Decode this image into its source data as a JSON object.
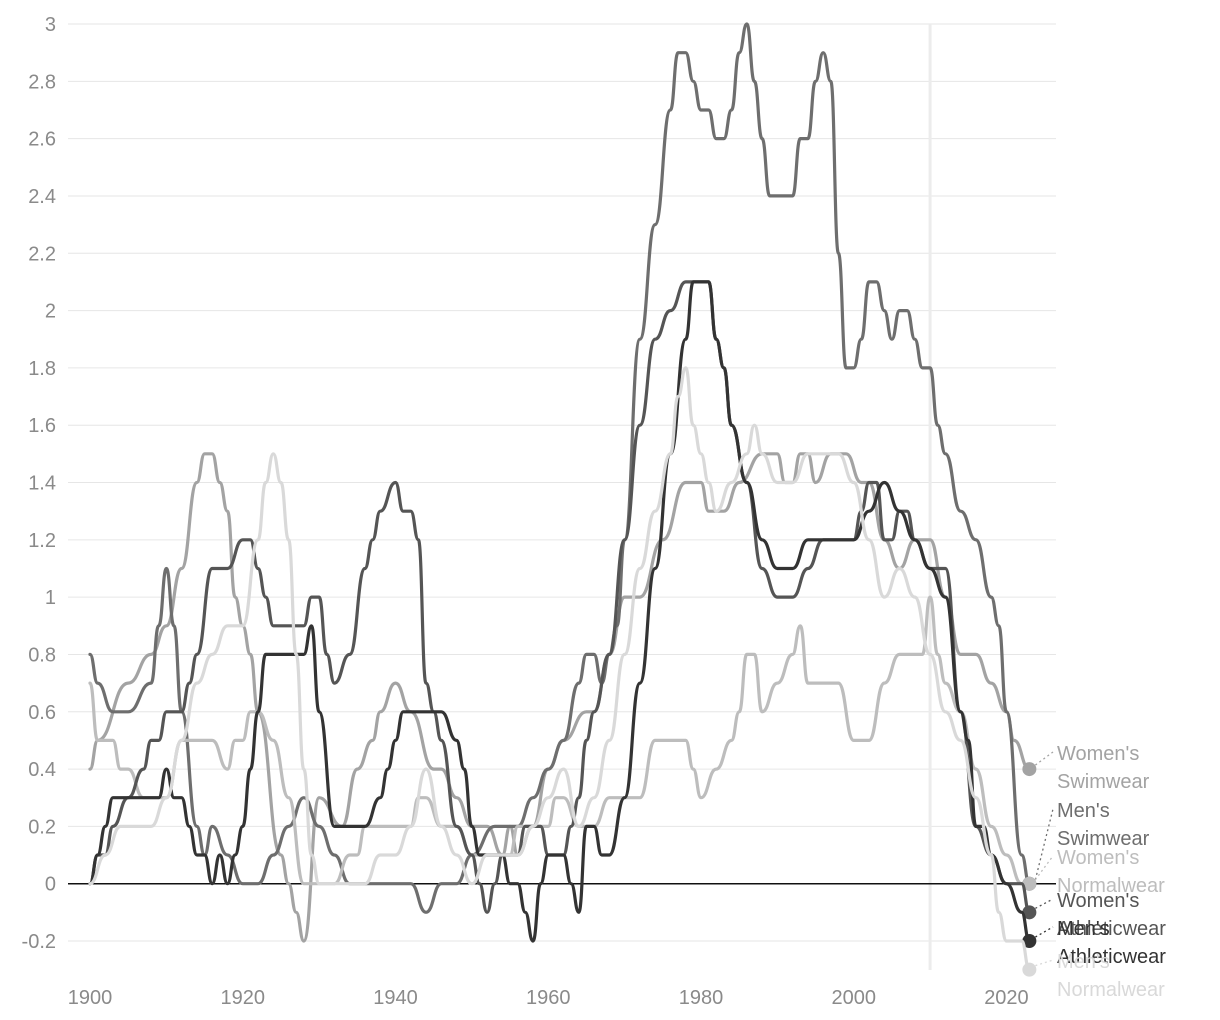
{
  "chart_data": {
    "type": "line",
    "title": "",
    "xlabel": "",
    "ylabel": "",
    "xlim": [
      1900,
      2024
    ],
    "ylim": [
      -0.3,
      3.0
    ],
    "x_ticks": [
      1900,
      1920,
      1940,
      1960,
      1980,
      2000,
      2020
    ],
    "y_ticks": [
      -0.2,
      0,
      0.2,
      0.4,
      0.6,
      0.8,
      1,
      1.2,
      1.4,
      1.6,
      1.8,
      2,
      2.2,
      2.4,
      2.6,
      2.8,
      3
    ],
    "y_tick_labels": [
      "-0.2",
      "0",
      "0.2",
      "0.4",
      "0.6",
      "0.8",
      "1",
      "1.2",
      "1.4",
      "1.6",
      "1.8",
      "2",
      "2.2",
      "2.4",
      "2.6",
      "2.8",
      "3"
    ],
    "x_tick_labels": [
      "1900",
      "1920",
      "1940",
      "1960",
      "1980",
      "2000",
      "2020"
    ],
    "grid": true,
    "vertical_marker_x": 2010,
    "legend": "end-of-line labels",
    "series": [
      {
        "name": "Women's Swimwear",
        "label_lines": [
          "Women's",
          "Swimwear"
        ],
        "color": "#a3a3a3",
        "x": [
          1900,
          1901,
          1905,
          1908,
          1910,
          1912,
          1914,
          1915,
          1916,
          1917,
          1918,
          1919,
          1920,
          1921,
          1922,
          1925,
          1926,
          1927,
          1928,
          1930,
          1933,
          1935,
          1937,
          1938,
          1940,
          1942,
          1945,
          1946,
          1948,
          1950,
          1952,
          1954,
          1955,
          1956,
          1958,
          1960,
          1962,
          1965,
          1966,
          1968,
          1970,
          1972,
          1975,
          1978,
          1979,
          1980,
          1981,
          1983,
          1985,
          1988,
          1990,
          1991,
          1992,
          1993,
          1994,
          1995,
          1997,
          1999,
          2001,
          2002,
          2004,
          2006,
          2008,
          2010,
          2012,
          2014,
          2016,
          2018,
          2020,
          2021,
          2023
        ],
        "y": [
          0.4,
          0.5,
          0.7,
          0.8,
          0.9,
          1.1,
          1.4,
          1.5,
          1.5,
          1.4,
          1.3,
          1.0,
          0.9,
          0.8,
          0.6,
          0.1,
          0.0,
          -0.1,
          -0.2,
          0.3,
          0.2,
          0.4,
          0.5,
          0.6,
          0.7,
          0.6,
          0.4,
          0.4,
          0.3,
          0.2,
          0.2,
          0.1,
          0.2,
          0.1,
          0.2,
          0.4,
          0.5,
          0.6,
          0.6,
          0.8,
          1.0,
          1.0,
          1.2,
          1.4,
          1.4,
          1.4,
          1.3,
          1.3,
          1.4,
          1.5,
          1.5,
          1.4,
          1.4,
          1.5,
          1.5,
          1.4,
          1.5,
          1.5,
          1.4,
          1.4,
          1.2,
          1.1,
          1.2,
          1.2,
          1.0,
          0.8,
          0.8,
          0.7,
          0.6,
          0.5,
          0.4
        ]
      },
      {
        "name": "Men's Swimwear",
        "label_lines": [
          "Men's",
          "Swimwear"
        ],
        "color": "#6e6e6e",
        "x": [
          1900,
          1901,
          1903,
          1905,
          1908,
          1909,
          1910,
          1911,
          1912,
          1914,
          1915,
          1916,
          1918,
          1920,
          1922,
          1924,
          1926,
          1928,
          1930,
          1932,
          1934,
          1936,
          1938,
          1940,
          1942,
          1944,
          1946,
          1948,
          1950,
          1953,
          1956,
          1958,
          1960,
          1962,
          1964,
          1965,
          1966,
          1967,
          1968,
          1969,
          1970,
          1972,
          1974,
          1976,
          1977,
          1978,
          1979,
          1980,
          1981,
          1982,
          1983,
          1984,
          1985,
          1986,
          1987,
          1988,
          1989,
          1990,
          1992,
          1993,
          1994,
          1995,
          1996,
          1997,
          1998,
          1999,
          2000,
          2001,
          2002,
          2003,
          2004,
          2005,
          2006,
          2007,
          2008,
          2009,
          2010,
          2011,
          2012,
          2014,
          2016,
          2018,
          2019,
          2020,
          2022,
          2023
        ],
        "y": [
          0.8,
          0.7,
          0.6,
          0.6,
          0.7,
          0.9,
          1.1,
          0.9,
          0.6,
          0.2,
          0.1,
          0.2,
          0.1,
          0.0,
          0.0,
          0.1,
          0.2,
          0.3,
          0.2,
          0.1,
          0.0,
          0.0,
          0.0,
          0.0,
          0.0,
          -0.1,
          0.0,
          0.0,
          0.1,
          0.2,
          0.2,
          0.3,
          0.4,
          0.5,
          0.7,
          0.8,
          0.8,
          0.7,
          0.8,
          0.9,
          1.2,
          1.9,
          2.3,
          2.7,
          2.9,
          2.9,
          2.8,
          2.7,
          2.7,
          2.6,
          2.6,
          2.7,
          2.9,
          3.0,
          2.8,
          2.6,
          2.4,
          2.4,
          2.4,
          2.6,
          2.6,
          2.8,
          2.9,
          2.8,
          2.2,
          1.8,
          1.8,
          1.9,
          2.1,
          2.1,
          2.0,
          1.9,
          2.0,
          2.0,
          1.9,
          1.8,
          1.8,
          1.6,
          1.5,
          1.3,
          1.2,
          1.0,
          0.9,
          0.6,
          0.1,
          0.0
        ]
      },
      {
        "name": "Women's Normalwear",
        "label_lines": [
          "Women's",
          "Normalwear"
        ],
        "color": "#bdbdbd",
        "x": [
          1900,
          1901,
          1903,
          1904,
          1905,
          1907,
          1910,
          1912,
          1914,
          1916,
          1918,
          1919,
          1920,
          1921,
          1922,
          1924,
          1926,
          1928,
          1930,
          1932,
          1934,
          1935,
          1936,
          1938,
          1940,
          1942,
          1943,
          1944,
          1946,
          1948,
          1950,
          1952,
          1954,
          1955,
          1956,
          1958,
          1960,
          1961,
          1962,
          1964,
          1966,
          1968,
          1970,
          1972,
          1974,
          1976,
          1978,
          1979,
          1980,
          1982,
          1984,
          1985,
          1986,
          1987,
          1988,
          1990,
          1992,
          1993,
          1994,
          1996,
          1998,
          2000,
          2002,
          2004,
          2006,
          2008,
          2009,
          2010,
          2011,
          2012,
          2014,
          2016,
          2018,
          2020,
          2022,
          2023
        ],
        "y": [
          0.7,
          0.5,
          0.5,
          0.4,
          0.4,
          0.3,
          0.3,
          0.5,
          0.5,
          0.5,
          0.4,
          0.5,
          0.5,
          0.6,
          0.6,
          0.5,
          0.3,
          0.0,
          0.0,
          0.0,
          0.1,
          0.1,
          0.2,
          0.2,
          0.2,
          0.2,
          0.3,
          0.3,
          0.2,
          0.2,
          0.1,
          0.1,
          0.1,
          0.1,
          0.2,
          0.2,
          0.2,
          0.3,
          0.3,
          0.2,
          0.2,
          0.3,
          0.3,
          0.3,
          0.5,
          0.5,
          0.5,
          0.4,
          0.3,
          0.4,
          0.5,
          0.6,
          0.8,
          0.8,
          0.6,
          0.7,
          0.8,
          0.9,
          0.7,
          0.7,
          0.7,
          0.5,
          0.5,
          0.7,
          0.8,
          0.8,
          0.8,
          1.0,
          0.8,
          0.7,
          0.6,
          0.4,
          0.2,
          0.1,
          0.0,
          0.0
        ]
      },
      {
        "name": "Women's Athleticwear",
        "label_lines": [
          "Women's",
          "Athleticwear"
        ],
        "color": "#555555",
        "x": [
          1900,
          1901,
          1902,
          1903,
          1905,
          1907,
          1908,
          1909,
          1910,
          1911,
          1912,
          1913,
          1914,
          1916,
          1918,
          1920,
          1921,
          1922,
          1923,
          1924,
          1925,
          1926,
          1928,
          1929,
          1930,
          1931,
          1932,
          1934,
          1936,
          1937,
          1938,
          1940,
          1941,
          1942,
          1943,
          1944,
          1945,
          1946,
          1948,
          1950,
          1951,
          1952,
          1953,
          1954,
          1955,
          1956,
          1957,
          1958,
          1959,
          1960,
          1961,
          1962,
          1963,
          1964,
          1965,
          1966,
          1968,
          1970,
          1972,
          1974,
          1976,
          1978,
          1979,
          1980,
          1981,
          1982,
          1983,
          1984,
          1986,
          1988,
          1990,
          1992,
          1994,
          1996,
          1998,
          2000,
          2001,
          2002,
          2003,
          2004,
          2005,
          2006,
          2007,
          2008,
          2010,
          2012,
          2014,
          2016,
          2018,
          2020,
          2022,
          2023
        ],
        "y": [
          0.0,
          0.1,
          0.1,
          0.2,
          0.3,
          0.4,
          0.5,
          0.5,
          0.6,
          0.6,
          0.6,
          0.7,
          0.8,
          1.1,
          1.1,
          1.2,
          1.2,
          1.1,
          1.0,
          0.9,
          0.9,
          0.9,
          0.9,
          1.0,
          1.0,
          0.8,
          0.7,
          0.8,
          1.1,
          1.2,
          1.3,
          1.4,
          1.3,
          1.3,
          1.2,
          0.7,
          0.6,
          0.5,
          0.2,
          0.1,
          0.0,
          -0.1,
          0.0,
          0.1,
          0.1,
          0.1,
          0.2,
          0.2,
          0.2,
          0.1,
          0.1,
          0.1,
          0.2,
          0.3,
          0.5,
          0.6,
          0.8,
          1.2,
          1.6,
          1.9,
          2.0,
          2.1,
          2.1,
          2.1,
          2.1,
          1.9,
          1.8,
          1.6,
          1.4,
          1.1,
          1.0,
          1.0,
          1.1,
          1.2,
          1.2,
          1.2,
          1.3,
          1.4,
          1.4,
          1.2,
          1.2,
          1.3,
          1.3,
          1.2,
          1.1,
          1.1,
          0.6,
          0.2,
          0.1,
          0.0,
          0.0,
          -0.1
        ]
      },
      {
        "name": "Men's Athleticwear",
        "label_lines": [
          "Men's",
          "Athleticwear"
        ],
        "color": "#333333",
        "x": [
          1900,
          1901,
          1902,
          1903,
          1904,
          1906,
          1908,
          1909,
          1910,
          1911,
          1912,
          1913,
          1914,
          1915,
          1916,
          1917,
          1918,
          1919,
          1920,
          1921,
          1922,
          1923,
          1924,
          1926,
          1928,
          1929,
          1930,
          1932,
          1934,
          1936,
          1938,
          1939,
          1940,
          1941,
          1942,
          1944,
          1946,
          1948,
          1949,
          1950,
          1951,
          1952,
          1953,
          1954,
          1955,
          1956,
          1957,
          1958,
          1959,
          1960,
          1961,
          1962,
          1963,
          1964,
          1965,
          1966,
          1967,
          1968,
          1970,
          1972,
          1974,
          1976,
          1978,
          1979,
          1980,
          1981,
          1982,
          1983,
          1984,
          1986,
          1988,
          1990,
          1992,
          1994,
          1996,
          1998,
          2000,
          2002,
          2004,
          2006,
          2008,
          2010,
          2012,
          2014,
          2015,
          2016,
          2017,
          2018,
          2020,
          2022,
          2023
        ],
        "y": [
          0.0,
          0.1,
          0.2,
          0.3,
          0.3,
          0.3,
          0.3,
          0.3,
          0.4,
          0.3,
          0.3,
          0.2,
          0.1,
          0.1,
          0.0,
          0.1,
          0.0,
          0.1,
          0.2,
          0.4,
          0.6,
          0.8,
          0.8,
          0.8,
          0.8,
          0.9,
          0.6,
          0.2,
          0.2,
          0.2,
          0.3,
          0.4,
          0.5,
          0.6,
          0.6,
          0.6,
          0.6,
          0.5,
          0.4,
          0.2,
          0.1,
          0.1,
          0.1,
          0.1,
          0.0,
          0.0,
          -0.1,
          -0.2,
          0.0,
          0.1,
          0.1,
          0.1,
          0.0,
          -0.1,
          0.2,
          0.2,
          0.1,
          0.1,
          0.3,
          0.7,
          1.1,
          1.5,
          1.9,
          2.1,
          2.1,
          2.1,
          1.9,
          1.8,
          1.6,
          1.4,
          1.2,
          1.1,
          1.1,
          1.2,
          1.2,
          1.2,
          1.2,
          1.3,
          1.4,
          1.3,
          1.2,
          1.1,
          1.0,
          0.6,
          0.5,
          0.2,
          0.2,
          0.1,
          0.0,
          -0.1,
          -0.2
        ]
      },
      {
        "name": "Men's Normalwear",
        "label_lines": [
          "Men's",
          "Normalwear"
        ],
        "color": "#d9d9d9",
        "x": [
          1900,
          1902,
          1904,
          1906,
          1908,
          1910,
          1912,
          1914,
          1916,
          1918,
          1920,
          1922,
          1923,
          1924,
          1925,
          1926,
          1927,
          1928,
          1929,
          1930,
          1932,
          1934,
          1936,
          1938,
          1940,
          1942,
          1944,
          1946,
          1948,
          1950,
          1952,
          1954,
          1956,
          1958,
          1960,
          1962,
          1964,
          1966,
          1968,
          1970,
          1972,
          1974,
          1976,
          1977,
          1978,
          1979,
          1980,
          1981,
          1982,
          1984,
          1986,
          1987,
          1988,
          1990,
          1992,
          1994,
          1996,
          1998,
          2000,
          2002,
          2004,
          2006,
          2008,
          2010,
          2012,
          2014,
          2016,
          2018,
          2019,
          2020,
          2022,
          2023
        ],
        "y": [
          0.0,
          0.1,
          0.2,
          0.2,
          0.2,
          0.3,
          0.5,
          0.7,
          0.8,
          0.9,
          0.9,
          1.2,
          1.4,
          1.5,
          1.4,
          1.2,
          0.8,
          0.4,
          0.1,
          0.0,
          0.0,
          0.0,
          0.0,
          0.1,
          0.1,
          0.2,
          0.4,
          0.2,
          0.1,
          0.0,
          0.1,
          0.1,
          0.1,
          0.2,
          0.3,
          0.4,
          0.2,
          0.3,
          0.5,
          0.8,
          1.1,
          1.3,
          1.5,
          1.7,
          1.8,
          1.6,
          1.5,
          1.4,
          1.3,
          1.4,
          1.5,
          1.6,
          1.5,
          1.4,
          1.4,
          1.5,
          1.5,
          1.5,
          1.4,
          1.2,
          1.0,
          1.1,
          1.0,
          0.8,
          0.6,
          0.5,
          0.3,
          0.1,
          -0.1,
          -0.2,
          -0.2,
          -0.3
        ]
      }
    ]
  }
}
